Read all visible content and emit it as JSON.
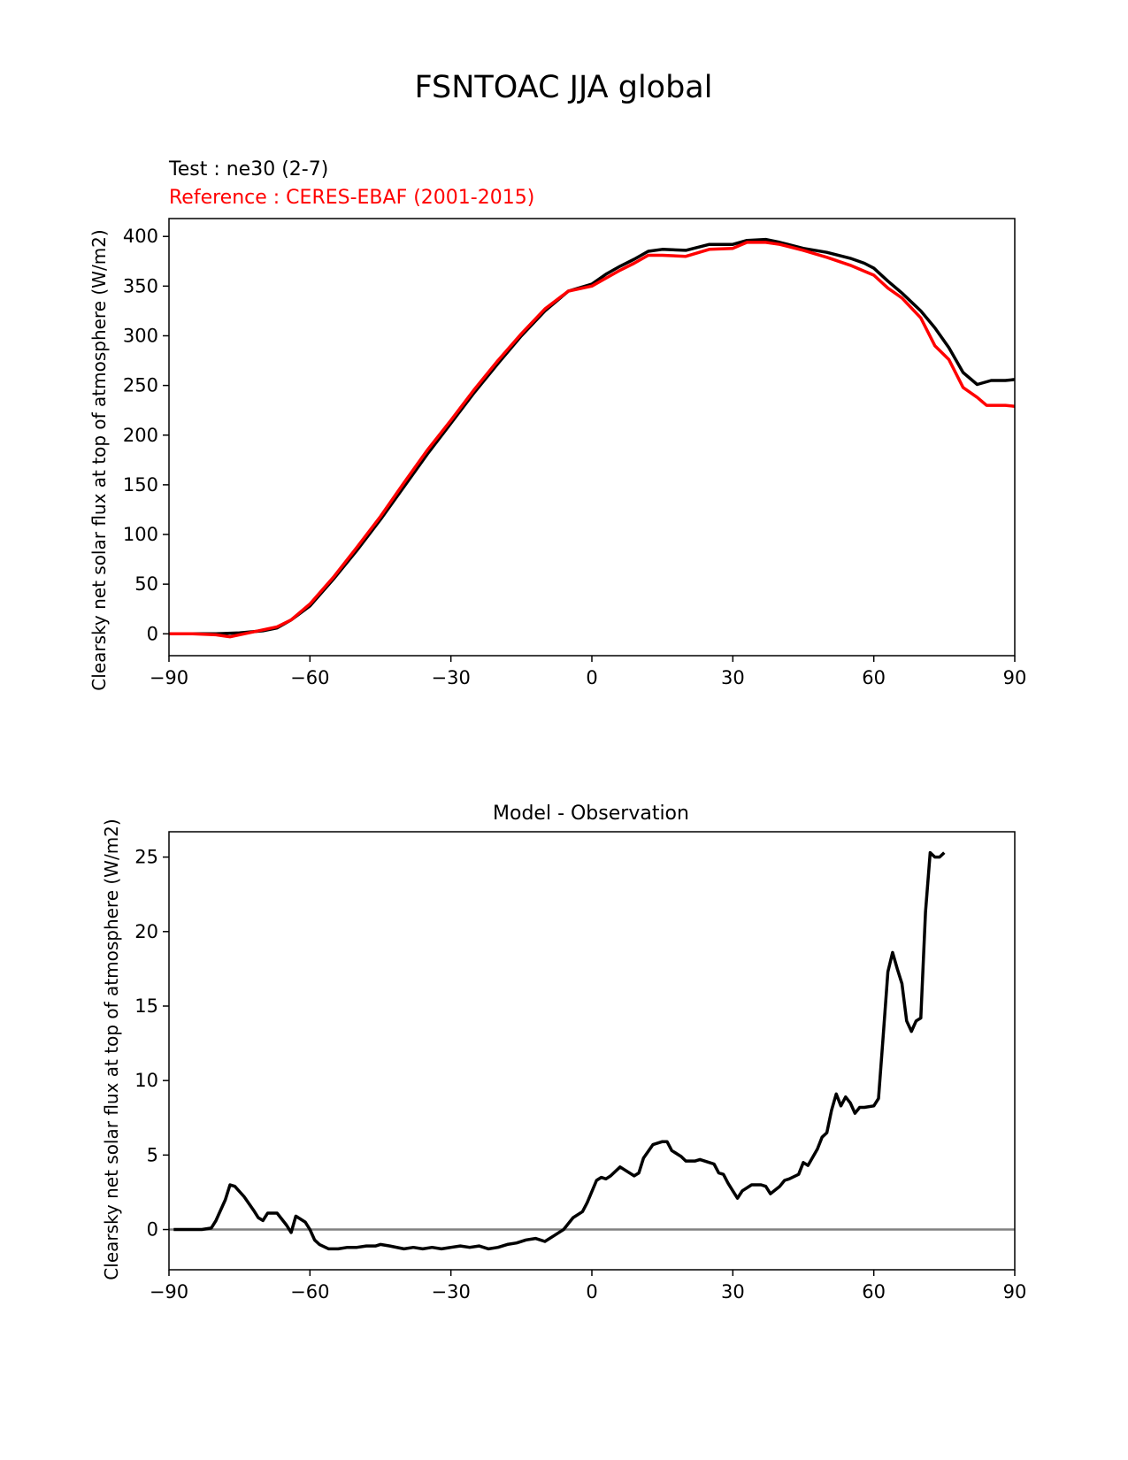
{
  "figure": {
    "suptitle": "FSNTOAC JJA global"
  },
  "colors": {
    "test": "#000000",
    "reference": "#ff0000",
    "zero_line": "#808080",
    "axes": "#000000"
  },
  "chart_data": [
    {
      "type": "line",
      "title": "",
      "title_left": "Test : ne30 (2-7)",
      "title_left_2": "Reference : CERES-EBAF (2001-2015)",
      "xlabel": "",
      "ylabel": "Clearsky net solar flux at top of atmosphere (W/m2)",
      "xlim": [
        -90,
        90
      ],
      "ylim": [
        -22,
        418
      ],
      "xticks": [
        -90,
        -60,
        -30,
        0,
        30,
        60,
        90
      ],
      "xtick_labels": [
        "−90",
        "−60",
        "−30",
        "0",
        "30",
        "60",
        "90"
      ],
      "yticks": [
        0,
        50,
        100,
        150,
        200,
        250,
        300,
        350,
        400
      ],
      "ytick_labels": [
        "0",
        "50",
        "100",
        "150",
        "200",
        "250",
        "300",
        "350",
        "400"
      ],
      "grid": false,
      "series": [
        {
          "key": "test",
          "points": [
            [
              -90,
              0
            ],
            [
              -85,
              0
            ],
            [
              -80,
              0
            ],
            [
              -75,
              1
            ],
            [
              -70,
              3
            ],
            [
              -67,
              6
            ],
            [
              -64,
              14
            ],
            [
              -60,
              28
            ],
            [
              -55,
              55
            ],
            [
              -50,
              84
            ],
            [
              -45,
              115
            ],
            [
              -40,
              148
            ],
            [
              -35,
              181
            ],
            [
              -30,
              212
            ],
            [
              -25,
              243
            ],
            [
              -20,
              272
            ],
            [
              -15,
              300
            ],
            [
              -10,
              325
            ],
            [
              -5,
              345
            ],
            [
              0,
              352
            ],
            [
              3,
              362
            ],
            [
              6,
              370
            ],
            [
              9,
              377
            ],
            [
              12,
              385
            ],
            [
              15,
              387
            ],
            [
              20,
              386
            ],
            [
              25,
              392
            ],
            [
              30,
              392
            ],
            [
              33,
              396
            ],
            [
              37,
              397
            ],
            [
              40,
              394
            ],
            [
              45,
              388
            ],
            [
              50,
              384
            ],
            [
              55,
              378
            ],
            [
              58,
              373
            ],
            [
              60,
              368
            ],
            [
              63,
              355
            ],
            [
              66,
              343
            ],
            [
              70,
              325
            ],
            [
              73,
              308
            ],
            [
              76,
              288
            ],
            [
              79,
              263
            ],
            [
              82,
              251
            ],
            [
              85,
              255
            ],
            [
              88,
              255
            ],
            [
              90,
              256
            ]
          ]
        },
        {
          "key": "reference",
          "points": [
            [
              -90,
              0
            ],
            [
              -85,
              0
            ],
            [
              -80,
              -1
            ],
            [
              -77,
              -3
            ],
            [
              -73,
              1
            ],
            [
              -70,
              4
            ],
            [
              -67,
              7
            ],
            [
              -64,
              14
            ],
            [
              -60,
              30
            ],
            [
              -55,
              57
            ],
            [
              -50,
              87
            ],
            [
              -45,
              118
            ],
            [
              -40,
              152
            ],
            [
              -35,
              185
            ],
            [
              -30,
              215
            ],
            [
              -25,
              246
            ],
            [
              -20,
              275
            ],
            [
              -15,
              302
            ],
            [
              -10,
              327
            ],
            [
              -5,
              345
            ],
            [
              0,
              350
            ],
            [
              3,
              358
            ],
            [
              6,
              366
            ],
            [
              9,
              373
            ],
            [
              12,
              381
            ],
            [
              15,
              381
            ],
            [
              20,
              380
            ],
            [
              25,
              387
            ],
            [
              30,
              388
            ],
            [
              33,
              394
            ],
            [
              37,
              394
            ],
            [
              40,
              392
            ],
            [
              45,
              386
            ],
            [
              50,
              379
            ],
            [
              55,
              371
            ],
            [
              58,
              365
            ],
            [
              60,
              361
            ],
            [
              63,
              348
            ],
            [
              66,
              338
            ],
            [
              70,
              318
            ],
            [
              73,
              290
            ],
            [
              76,
              276
            ],
            [
              79,
              248
            ],
            [
              82,
              238
            ],
            [
              84,
              230
            ],
            [
              88,
              230
            ],
            [
              90,
              229
            ]
          ]
        }
      ]
    },
    {
      "type": "line",
      "title": "Model - Observation",
      "xlabel": "",
      "ylabel": "Clearsky net solar flux at top of atmosphere (W/m2)",
      "xlim": [
        -90,
        90
      ],
      "ylim": [
        -2.7,
        26.7
      ],
      "xticks": [
        -90,
        -60,
        -30,
        0,
        30,
        60,
        90
      ],
      "xtick_labels": [
        "−90",
        "−60",
        "−30",
        "0",
        "30",
        "60",
        "90"
      ],
      "yticks": [
        0,
        5,
        10,
        15,
        20,
        25
      ],
      "ytick_labels": [
        "0",
        "5",
        "10",
        "15",
        "20",
        "25"
      ],
      "grid": false,
      "zero_line": 0,
      "series": [
        {
          "key": "test",
          "points": [
            [
              -89,
              0
            ],
            [
              -83,
              0
            ],
            [
              -81,
              0.1
            ],
            [
              -80,
              0.6
            ],
            [
              -78,
              2
            ],
            [
              -77,
              3
            ],
            [
              -76,
              2.9
            ],
            [
              -74,
              2.2
            ],
            [
              -72,
              1.3
            ],
            [
              -71,
              0.8
            ],
            [
              -70,
              0.6
            ],
            [
              -69,
              1.1
            ],
            [
              -67,
              1.1
            ],
            [
              -65,
              0.3
            ],
            [
              -64,
              -0.2
            ],
            [
              -63,
              0.9
            ],
            [
              -61,
              0.5
            ],
            [
              -60,
              0
            ],
            [
              -59,
              -0.7
            ],
            [
              -58,
              -1
            ],
            [
              -56,
              -1.3
            ],
            [
              -54,
              -1.3
            ],
            [
              -52,
              -1.2
            ],
            [
              -50,
              -1.2
            ],
            [
              -48,
              -1.1
            ],
            [
              -46,
              -1.1
            ],
            [
              -45,
              -1
            ],
            [
              -43,
              -1.1
            ],
            [
              -40,
              -1.3
            ],
            [
              -38,
              -1.2
            ],
            [
              -36,
              -1.3
            ],
            [
              -34,
              -1.2
            ],
            [
              -32,
              -1.3
            ],
            [
              -30,
              -1.2
            ],
            [
              -28,
              -1.1
            ],
            [
              -26,
              -1.2
            ],
            [
              -24,
              -1.1
            ],
            [
              -22,
              -1.3
            ],
            [
              -20,
              -1.2
            ],
            [
              -18,
              -1
            ],
            [
              -16,
              -0.9
            ],
            [
              -14,
              -0.7
            ],
            [
              -12,
              -0.6
            ],
            [
              -10,
              -0.8
            ],
            [
              -8,
              -0.4
            ],
            [
              -6,
              0
            ],
            [
              -5,
              0.4
            ],
            [
              -4,
              0.8
            ],
            [
              -2,
              1.2
            ],
            [
              -1,
              1.8
            ],
            [
              1,
              3.3
            ],
            [
              2,
              3.5
            ],
            [
              3,
              3.4
            ],
            [
              4,
              3.6
            ],
            [
              6,
              4.2
            ],
            [
              7,
              4
            ],
            [
              9,
              3.6
            ],
            [
              10,
              3.8
            ],
            [
              11,
              4.8
            ],
            [
              13,
              5.7
            ],
            [
              15,
              5.9
            ],
            [
              16,
              5.9
            ],
            [
              17,
              5.3
            ],
            [
              19,
              4.9
            ],
            [
              20,
              4.6
            ],
            [
              22,
              4.6
            ],
            [
              23,
              4.7
            ],
            [
              25,
              4.5
            ],
            [
              26,
              4.4
            ],
            [
              27,
              3.8
            ],
            [
              28,
              3.7
            ],
            [
              29,
              3.1
            ],
            [
              30,
              2.6
            ],
            [
              31,
              2.1
            ],
            [
              32,
              2.6
            ],
            [
              34,
              3
            ],
            [
              36,
              3
            ],
            [
              37,
              2.9
            ],
            [
              38,
              2.4
            ],
            [
              40,
              2.9
            ],
            [
              41,
              3.3
            ],
            [
              42,
              3.4
            ],
            [
              44,
              3.7
            ],
            [
              45,
              4.5
            ],
            [
              46,
              4.3
            ],
            [
              48,
              5.4
            ],
            [
              49,
              6.2
            ],
            [
              50,
              6.5
            ],
            [
              51,
              8.0
            ],
            [
              52,
              9.1
            ],
            [
              53,
              8.3
            ],
            [
              54,
              8.9
            ],
            [
              55,
              8.5
            ],
            [
              56,
              7.8
            ],
            [
              57,
              8.2
            ],
            [
              58,
              8.2
            ],
            [
              60,
              8.3
            ],
            [
              61,
              8.8
            ],
            [
              62,
              13
            ],
            [
              63,
              17.3
            ],
            [
              64,
              18.6
            ],
            [
              65,
              17.5
            ],
            [
              66,
              16.5
            ],
            [
              67,
              14
            ],
            [
              68,
              13.3
            ],
            [
              69,
              14
            ],
            [
              70,
              14.2
            ],
            [
              71,
              21.3
            ],
            [
              72,
              25.3
            ],
            [
              73,
              25
            ],
            [
              74,
              25
            ],
            [
              75,
              25.3
            ]
          ]
        }
      ]
    }
  ]
}
